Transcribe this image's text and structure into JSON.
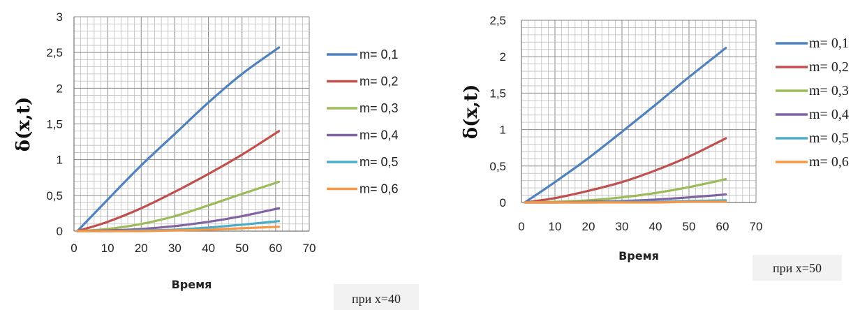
{
  "chart_data": [
    {
      "type": "line",
      "xlabel": "Время",
      "ylabel": "δ(x,t)",
      "xlim": [
        0,
        70
      ],
      "ylim": [
        0,
        3
      ],
      "xticks": [
        "0",
        "10",
        "20",
        "30",
        "40",
        "50",
        "60",
        "70"
      ],
      "yticks": [
        "0",
        "0,5",
        "1",
        "1,5",
        "2",
        "2,5",
        "3"
      ],
      "grid": true,
      "legend": "right",
      "note": "при x=40",
      "x": [
        1,
        10,
        20,
        30,
        40,
        50,
        61
      ],
      "series": [
        {
          "name": "m= 0,1",
          "color": "#4F81BD",
          "values": [
            0,
            0.44,
            0.92,
            1.36,
            1.8,
            2.2,
            2.57
          ]
        },
        {
          "name": "m= 0,2",
          "color": "#C0504D",
          "values": [
            0,
            0.13,
            0.32,
            0.55,
            0.8,
            1.07,
            1.4
          ]
        },
        {
          "name": "m= 0,3",
          "color": "#9BBB59",
          "values": [
            0,
            0.03,
            0.1,
            0.21,
            0.36,
            0.52,
            0.69
          ]
        },
        {
          "name": "m= 0,4",
          "color": "#8064A2",
          "values": [
            0,
            0.01,
            0.03,
            0.07,
            0.13,
            0.21,
            0.32
          ]
        },
        {
          "name": "m= 0,5",
          "color": "#4BACC6",
          "values": [
            0,
            0.0,
            0.01,
            0.02,
            0.05,
            0.09,
            0.14
          ]
        },
        {
          "name": "m= 0,6",
          "color": "#F79646",
          "values": [
            0,
            0.0,
            0.0,
            0.01,
            0.02,
            0.04,
            0.06
          ]
        }
      ]
    },
    {
      "type": "line",
      "xlabel": "Время",
      "ylabel": "δ(x,t)",
      "xlim": [
        0,
        70
      ],
      "ylim": [
        0,
        2.5
      ],
      "xticks": [
        "0",
        "10",
        "20",
        "30",
        "40",
        "50",
        "60",
        "70"
      ],
      "yticks": [
        "0",
        "0,5",
        "1",
        "1,5",
        "2",
        "2,5"
      ],
      "grid": true,
      "legend": "right",
      "note": "при x=50",
      "x": [
        1,
        10,
        20,
        30,
        40,
        50,
        61
      ],
      "series": [
        {
          "name": "m= 0,1",
          "color": "#4F81BD",
          "values": [
            0,
            0.28,
            0.61,
            0.97,
            1.34,
            1.72,
            2.12
          ]
        },
        {
          "name": "m= 0,2",
          "color": "#C0504D",
          "values": [
            0,
            0.06,
            0.16,
            0.28,
            0.44,
            0.63,
            0.88
          ]
        },
        {
          "name": "m= 0,3",
          "color": "#9BBB59",
          "values": [
            0,
            0.01,
            0.03,
            0.07,
            0.13,
            0.21,
            0.32
          ]
        },
        {
          "name": "m= 0,4",
          "color": "#8064A2",
          "values": [
            0,
            0.0,
            0.01,
            0.02,
            0.04,
            0.07,
            0.11
          ]
        },
        {
          "name": "m= 0,5",
          "color": "#4BACC6",
          "values": [
            0,
            0.0,
            0.0,
            0.01,
            0.01,
            0.02,
            0.03
          ]
        },
        {
          "name": "m= 0,6",
          "color": "#F79646",
          "values": [
            0,
            0.0,
            0.0,
            0.0,
            0.0,
            0.01,
            0.01
          ]
        }
      ]
    }
  ]
}
